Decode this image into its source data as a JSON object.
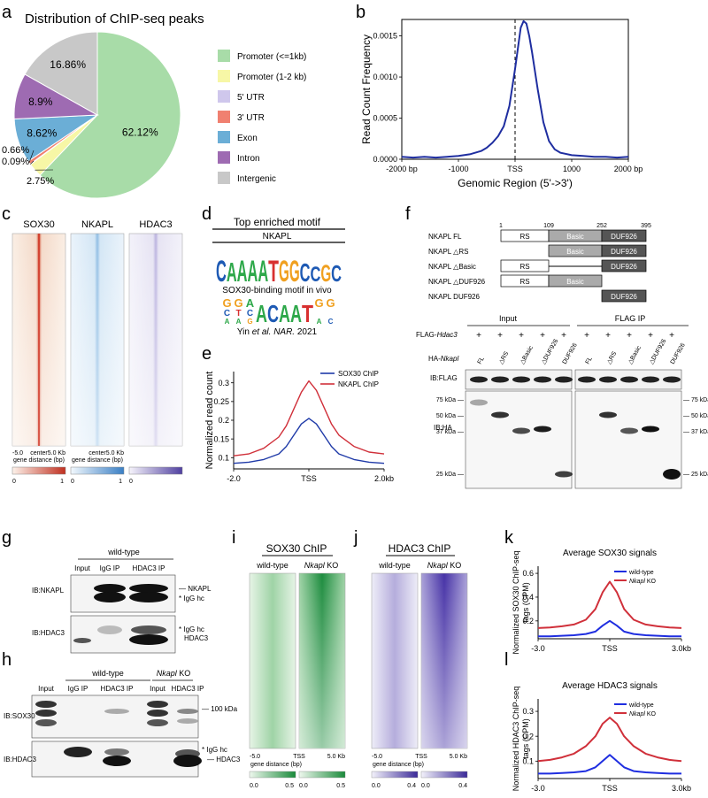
{
  "panels": {
    "a": "a",
    "b": "b",
    "c": "c",
    "d": "d",
    "e": "e",
    "f": "f",
    "g": "g",
    "h": "h",
    "i": "i",
    "j": "j",
    "k": "k",
    "l": "l"
  },
  "colors": {
    "promoter1": "#a8dca8",
    "promoter2": "#f7f7a6",
    "utr5": "#cfc7ec",
    "utr3": "#f08070",
    "exon": "#6baed6",
    "intron": "#9e6bb2",
    "intergenic": "#c8c8c8",
    "sox30": "#c03020",
    "nkapl": "#4a90d0",
    "hdac3": "#6a5cb0",
    "wt_line": "#1f3aa8",
    "ko_line": "#d0303a",
    "green": "#2e9a48",
    "purple": "#4b36a8"
  },
  "chart_data": [
    {
      "id": "a",
      "type": "pie",
      "title": "Distribution of ChIP-seq peaks",
      "slices": [
        {
          "label": "Promoter (<=1kb)",
          "value": 62.12,
          "text": "62.12%"
        },
        {
          "label": "Promoter (1-2 kb)",
          "value": 2.75,
          "text": "2.75%"
        },
        {
          "label": "5' UTR",
          "value": 0.09,
          "text": "0.09%"
        },
        {
          "label": "3' UTR",
          "value": 0.66,
          "text": "0.66%"
        },
        {
          "label": "Exon",
          "value": 8.62,
          "text": "8.62%"
        },
        {
          "label": "Intron",
          "value": 8.9,
          "text": "8.9%"
        },
        {
          "label": "Intergenic",
          "value": 16.86,
          "text": "16.86%"
        }
      ]
    },
    {
      "id": "b",
      "type": "line",
      "xlabel": "Genomic Region (5'->3')",
      "ylabel": "Read Count Frequency",
      "xlim": [
        -2000,
        2000
      ],
      "ylim": [
        0,
        0.0017
      ],
      "xticks": [
        {
          "v": -2000,
          "t": "-2000 bp"
        },
        {
          "v": -1000,
          "t": "-1000"
        },
        {
          "v": 0,
          "t": "TSS"
        },
        {
          "v": 1000,
          "t": "1000"
        },
        {
          "v": 2000,
          "t": "2000 bp"
        }
      ],
      "yticks": [
        {
          "v": 0,
          "t": "0.0000"
        },
        {
          "v": 0.0005,
          "t": "0.0005"
        },
        {
          "v": 0.001,
          "t": "0.0010"
        },
        {
          "v": 0.0015,
          "t": "0.0015"
        }
      ],
      "x": [
        -2000,
        -1800,
        -1600,
        -1400,
        -1200,
        -1000,
        -800,
        -600,
        -500,
        -400,
        -300,
        -200,
        -100,
        0,
        100,
        150,
        200,
        250,
        300,
        400,
        500,
        600,
        700,
        800,
        1000,
        1200,
        1400,
        1600,
        1800,
        2000
      ],
      "y": [
        3e-05,
        2e-05,
        3e-05,
        2e-05,
        3e-05,
        4e-05,
        6e-05,
        0.0001,
        0.00014,
        0.0002,
        0.00028,
        0.0004,
        0.00065,
        0.0011,
        0.0016,
        0.00168,
        0.00165,
        0.0015,
        0.0013,
        0.00085,
        0.00045,
        0.00022,
        0.00012,
        8e-05,
        5e-05,
        4e-05,
        3e-05,
        3e-05,
        2e-05,
        3e-05
      ]
    },
    {
      "id": "e",
      "type": "line",
      "ylabel": "Normalized read count",
      "xlim": [
        -2,
        2
      ],
      "ylim": [
        0.07,
        0.33
      ],
      "xticks": [
        {
          "v": -2,
          "t": "-2.0"
        },
        {
          "v": 0,
          "t": "TSS"
        },
        {
          "v": 2,
          "t": "2.0kb"
        }
      ],
      "yticks": [
        {
          "v": 0.1,
          "t": "0.1"
        },
        {
          "v": 0.15,
          "t": "0.15"
        },
        {
          "v": 0.2,
          "t": "0.2"
        },
        {
          "v": 0.25,
          "t": "0.25"
        },
        {
          "v": 0.3,
          "t": "0.3"
        }
      ],
      "x": [
        -2,
        -1.6,
        -1.2,
        -0.8,
        -0.6,
        -0.4,
        -0.2,
        0,
        0.2,
        0.4,
        0.6,
        0.8,
        1.2,
        1.6,
        2
      ],
      "series": [
        {
          "name": "SOX30 ChIP",
          "color": "#1f3aa8",
          "values": [
            0.085,
            0.088,
            0.095,
            0.11,
            0.13,
            0.16,
            0.19,
            0.205,
            0.19,
            0.16,
            0.13,
            0.11,
            0.095,
            0.088,
            0.085
          ]
        },
        {
          "name": "NKAPL ChIP",
          "color": "#d0303a",
          "values": [
            0.105,
            0.11,
            0.125,
            0.155,
            0.185,
            0.23,
            0.275,
            0.305,
            0.28,
            0.235,
            0.19,
            0.16,
            0.13,
            0.115,
            0.11
          ]
        }
      ]
    },
    {
      "id": "k",
      "type": "line",
      "title": "Average SOX30 signals",
      "ylabel": "Normalized SOX30 ChIP-seq tags (CPM)",
      "xlim": [
        -3,
        3
      ],
      "ylim": [
        0.05,
        0.66
      ],
      "xticks": [
        {
          "v": -3,
          "t": "-3.0"
        },
        {
          "v": 0,
          "t": "TSS"
        },
        {
          "v": 3,
          "t": "3.0kb"
        }
      ],
      "yticks": [
        {
          "v": 0.2,
          "t": "0.2"
        },
        {
          "v": 0.4,
          "t": "0.4"
        },
        {
          "v": 0.6,
          "t": "0.6"
        }
      ],
      "x": [
        -3,
        -2.5,
        -2,
        -1.5,
        -1,
        -0.6,
        -0.3,
        0,
        0.3,
        0.6,
        1,
        1.5,
        2,
        2.5,
        3
      ],
      "series": [
        {
          "name": "wild-type",
          "color": "#1f2ee0",
          "values": [
            0.07,
            0.07,
            0.075,
            0.08,
            0.09,
            0.11,
            0.16,
            0.2,
            0.16,
            0.11,
            0.09,
            0.08,
            0.075,
            0.07,
            0.07
          ]
        },
        {
          "name": "Nkapl KO",
          "color": "#d0303a",
          "values": [
            0.14,
            0.145,
            0.155,
            0.17,
            0.21,
            0.3,
            0.44,
            0.53,
            0.44,
            0.3,
            0.21,
            0.17,
            0.155,
            0.145,
            0.14
          ]
        }
      ]
    },
    {
      "id": "l",
      "type": "line",
      "title": "Average HDAC3 signals",
      "ylabel": "Normalized HDAC3 ChIP-seq tags (CPM)",
      "xlim": [
        -3,
        3
      ],
      "ylim": [
        0.03,
        0.35
      ],
      "xticks": [
        {
          "v": -3,
          "t": "-3.0"
        },
        {
          "v": 0,
          "t": "TSS"
        },
        {
          "v": 3,
          "t": "3.0kb"
        }
      ],
      "yticks": [
        {
          "v": 0.1,
          "t": "0.1"
        },
        {
          "v": 0.2,
          "t": "0.2"
        },
        {
          "v": 0.3,
          "t": "0.3"
        }
      ],
      "x": [
        -3,
        -2.5,
        -2,
        -1.5,
        -1,
        -0.6,
        -0.3,
        0,
        0.3,
        0.6,
        1,
        1.5,
        2,
        2.5,
        3
      ],
      "series": [
        {
          "name": "wild-type",
          "color": "#1f2ee0",
          "values": [
            0.05,
            0.05,
            0.052,
            0.055,
            0.06,
            0.075,
            0.1,
            0.125,
            0.1,
            0.075,
            0.06,
            0.055,
            0.052,
            0.05,
            0.05
          ]
        },
        {
          "name": "Nkapl KO",
          "color": "#d0303a",
          "values": [
            0.1,
            0.105,
            0.115,
            0.13,
            0.16,
            0.2,
            0.25,
            0.275,
            0.25,
            0.2,
            0.16,
            0.13,
            0.115,
            0.105,
            0.1
          ]
        }
      ]
    }
  ],
  "heatmaps_c": {
    "cols": [
      {
        "title": "SOX30",
        "scale_max": "1",
        "color": "#c03020"
      },
      {
        "title": "NKAPL",
        "scale_max": "1",
        "color": "#4a90d0"
      },
      {
        "title": "HDAC3",
        "scale_max": "",
        "color": "#6a5cb0"
      }
    ],
    "tick_left": "-5.0",
    "tick_center": "center",
    "tick_right": "5.0 Kb",
    "xlabel": "gene distance (bp)",
    "scale_min": "0"
  },
  "motif_d": {
    "title": "Top enriched motif",
    "protein": "NKAPL",
    "logo1": [
      "C",
      "A",
      "A",
      "A",
      "A",
      "T",
      "G",
      "G",
      "C",
      "C",
      "G",
      "C"
    ],
    "logo1_colors": [
      "#1e5ab4",
      "#2ea84a",
      "#2ea84a",
      "#2ea84a",
      "#2ea84a",
      "#d83030",
      "#f0a020",
      "#f0a020",
      "#1e5ab4",
      "#1e5ab4",
      "#f0a020",
      "#1e5ab4"
    ],
    "caption": "SOX30-binding motif in vivo",
    "logo2_top": [
      "G",
      "G",
      "A",
      "",
      "",
      "",
      "",
      "",
      "G",
      "G"
    ],
    "logo2_mid": [
      "C",
      "T",
      "C",
      "A",
      "C",
      "A",
      "A",
      "T",
      "",
      ""
    ],
    "logo2_bot": [
      "A",
      "A",
      "G",
      "",
      "",
      "",
      "",
      "",
      "A",
      "C"
    ],
    "citation_pre": "Yin ",
    "citation_italic": "et al. NAR.",
    "citation_post": " 2021"
  },
  "construct_f": {
    "positions": [
      "1",
      "109",
      "252",
      "395"
    ],
    "constructs": [
      "NKAPL FL",
      "NKAPL △RS",
      "NKAPL △Basic",
      "NKAPL △DUF926",
      "NKAPL DUF926"
    ],
    "domains": {
      "rs": "RS",
      "basic": "Basic",
      "duf": "DUF926"
    },
    "input_label": "Input",
    "flagip_label": "FLAG IP",
    "flag_row_label": "FLAG-",
    "flag_row_italic": "Hdac3",
    "plus": "+",
    "ha_row_label": "HA-",
    "ha_row_italic": "Nkapl",
    "lanes": [
      "FL",
      "△RS",
      "△Basic",
      "△DUF926",
      "DUF926"
    ],
    "ib_flag": "IB:FLAG",
    "ib_ha": "IB:HA",
    "markers": [
      "75 kDa",
      "50 kDa",
      "37 kDa",
      "25 kDa"
    ]
  },
  "blot_g": {
    "group": "wild-type",
    "lanes": [
      "Input",
      "IgG IP",
      "HDAC3 IP"
    ],
    "ib1": "IB:NKAPL",
    "ib2": "IB:HDAC3",
    "r1a": "NKAPL",
    "r1b": "IgG hc",
    "r2a": "IgG hc",
    "r2b": "HDAC3",
    "star": "*"
  },
  "blot_h": {
    "group_wt": "wild-type",
    "group_ko_italic": "Nkapl",
    "group_ko": " KO",
    "lanes": [
      "Input",
      "IgG IP",
      "HDAC3 IP",
      "Input",
      "HDAC3 IP"
    ],
    "ib1": "IB:SOX30",
    "ib2": "IB:HDAC3",
    "marker": "100 kDa",
    "r2a": "IgG hc",
    "r2b": "HDAC3",
    "star": "*"
  },
  "heatmap_i": {
    "title": "SOX30 ChIP",
    "wt": "wild-type",
    "ko_italic": "Nkapl",
    "ko": " KO",
    "ticks": [
      "-5.0",
      "TSS",
      "5.0 Kb"
    ],
    "xlabel": "gene distance (bp)",
    "scale_min": "0.0",
    "scale_mid": "0.5",
    "scale_max": "0.5"
  },
  "heatmap_j": {
    "title": "HDAC3 ChIP",
    "wt": "wild-type",
    "ko_italic": "Nkapl",
    "ko": " KO",
    "ticks": [
      "-5.0",
      "TSS",
      "5.0 Kb"
    ],
    "xlabel": "gene distance (bp)",
    "scale_min": "0.0",
    "scale_mid": "0.4",
    "scale_max": "0.4"
  },
  "legend_kl": {
    "wt": "wild-type",
    "ko_italic": "Nkapl",
    "ko": " KO"
  }
}
